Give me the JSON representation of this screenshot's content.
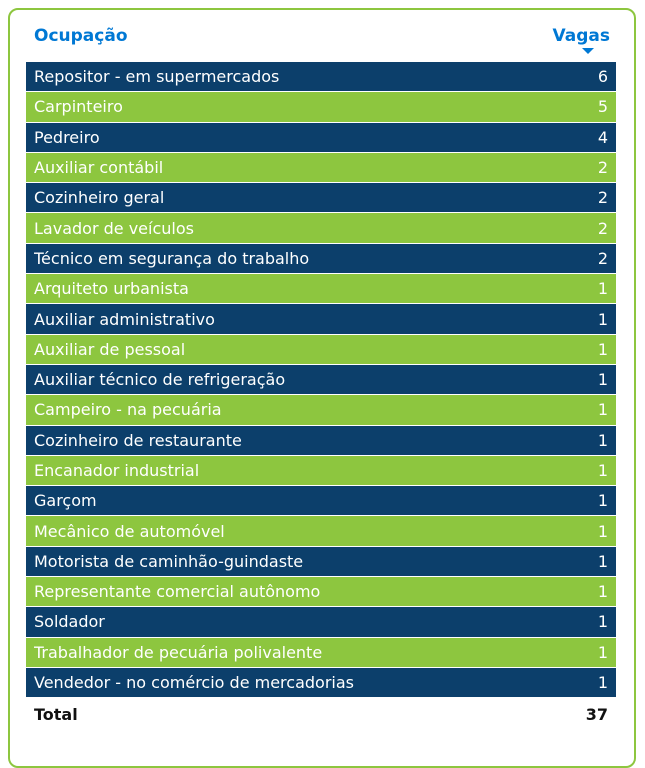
{
  "header": {
    "occupation_label": "Ocupação",
    "vacancies_label": "Vagas",
    "sort_icon": "caret-down-icon",
    "accent_color": "#0078d4"
  },
  "colors": {
    "dark_row": "#0c3f6b",
    "green_row": "#8dc63f",
    "border": "#8dc63f"
  },
  "rows": [
    {
      "label": "Repositor - em supermercados",
      "value": "6"
    },
    {
      "label": "Carpinteiro",
      "value": "5"
    },
    {
      "label": "Pedreiro",
      "value": "4"
    },
    {
      "label": "Auxiliar contábil",
      "value": "2"
    },
    {
      "label": "Cozinheiro geral",
      "value": "2"
    },
    {
      "label": "Lavador de veículos",
      "value": "2"
    },
    {
      "label": "Técnico em segurança do trabalho",
      "value": "2"
    },
    {
      "label": "Arquiteto urbanista",
      "value": "1"
    },
    {
      "label": "Auxiliar administrativo",
      "value": "1"
    },
    {
      "label": "Auxiliar de pessoal",
      "value": "1"
    },
    {
      "label": "Auxiliar técnico de refrigeração",
      "value": "1"
    },
    {
      "label": "Campeiro - na pecuária",
      "value": "1"
    },
    {
      "label": "Cozinheiro de restaurante",
      "value": "1"
    },
    {
      "label": "Encanador industrial",
      "value": "1"
    },
    {
      "label": "Garçom",
      "value": "1"
    },
    {
      "label": "Mecânico de automóvel",
      "value": "1"
    },
    {
      "label": "Motorista de caminhão-guindaste",
      "value": "1"
    },
    {
      "label": "Representante comercial autônomo",
      "value": "1"
    },
    {
      "label": "Soldador",
      "value": "1"
    },
    {
      "label": "Trabalhador de pecuária polivalente",
      "value": "1"
    },
    {
      "label": "Vendedor - no comércio de mercadorias",
      "value": "1"
    }
  ],
  "total": {
    "label": "Total",
    "value": "37"
  }
}
